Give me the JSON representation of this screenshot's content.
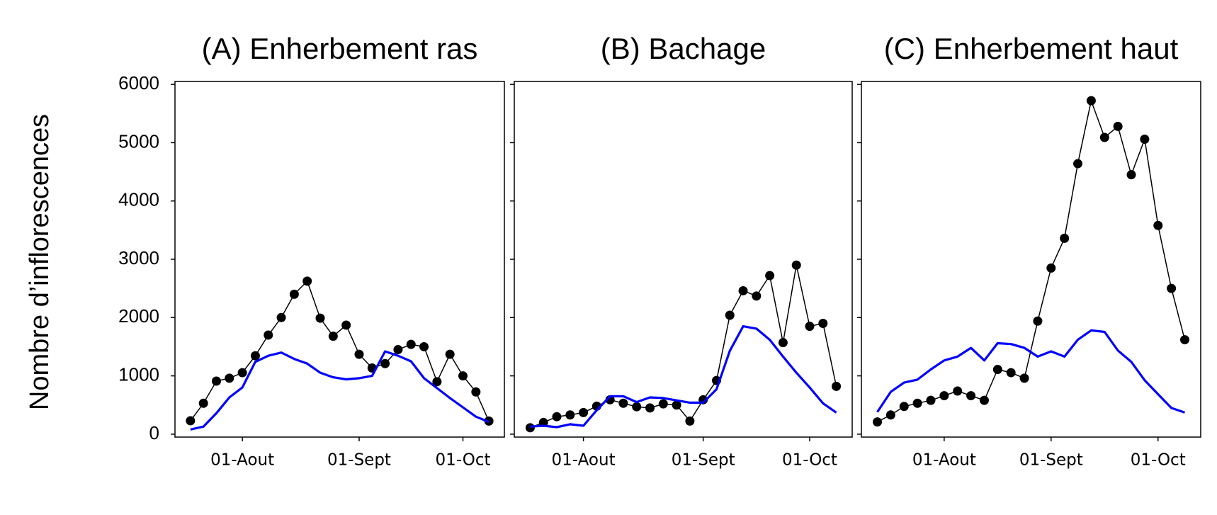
{
  "chart_data": [
    {
      "type": "line",
      "title": "(A) Enherbement ras",
      "ylabel": "Nombre d’inflorescences",
      "categories": [
        null,
        null,
        null,
        null,
        "01-Aout",
        null,
        null,
        null,
        null,
        null,
        null,
        null,
        null,
        "01-Sept",
        null,
        null,
        null,
        null,
        null,
        null,
        null,
        "01-Oct",
        null,
        null
      ],
      "series": [
        {
          "color": "#000000",
          "marker": "o",
          "values": [
            230,
            530,
            910,
            960,
            1055,
            1345,
            1700,
            2000,
            2400,
            2625,
            1990,
            1680,
            1870,
            1370,
            1135,
            1210,
            1450,
            1540,
            1500,
            900,
            1370,
            1000,
            725,
            225
          ]
        },
        {
          "color": "#0000ff",
          "marker": "none",
          "values": [
            80,
            130,
            360,
            630,
            800,
            1240,
            1345,
            1400,
            1290,
            1210,
            1055,
            975,
            940,
            960,
            1000,
            1420,
            1345,
            1250,
            960,
            790,
            620,
            460,
            300,
            210
          ]
        }
      ],
      "ylim": [
        -50,
        6050
      ],
      "yticks": [
        0,
        1000,
        2000,
        3000,
        4000,
        5000,
        6000
      ],
      "show_ytick_labels": true
    },
    {
      "type": "line",
      "title": "(B) Bachage",
      "categories": [
        null,
        null,
        null,
        null,
        "01-Aout",
        null,
        null,
        null,
        null,
        null,
        null,
        null,
        null,
        "01-Sept",
        null,
        null,
        null,
        null,
        null,
        null,
        null,
        "01-Oct",
        null,
        null
      ],
      "series": [
        {
          "color": "#000000",
          "marker": "o",
          "values": [
            110,
            200,
            300,
            330,
            370,
            480,
            590,
            530,
            470,
            450,
            520,
            500,
            225,
            590,
            920,
            2040,
            2460,
            2370,
            2720,
            1570,
            2900,
            1850,
            1900,
            820
          ]
        },
        {
          "color": "#0000ff",
          "marker": "none",
          "values": [
            130,
            145,
            120,
            170,
            145,
            410,
            650,
            650,
            550,
            630,
            620,
            580,
            540,
            540,
            770,
            1430,
            1850,
            1810,
            1620,
            1330,
            1055,
            800,
            530,
            370
          ]
        }
      ],
      "ylim": [
        -50,
        6050
      ],
      "yticks": [
        0,
        1000,
        2000,
        3000,
        4000,
        5000,
        6000
      ],
      "show_ytick_labels": false
    },
    {
      "type": "line",
      "title": "(C) Enherbement haut",
      "categories": [
        null,
        null,
        null,
        null,
        null,
        "01-Aout",
        null,
        null,
        null,
        null,
        null,
        null,
        null,
        "01-Sept",
        null,
        null,
        null,
        null,
        null,
        null,
        null,
        "01-Oct",
        null,
        null
      ],
      "series": [
        {
          "color": "#000000",
          "marker": "o",
          "values": [
            210,
            330,
            475,
            530,
            580,
            660,
            740,
            660,
            580,
            1110,
            1055,
            960,
            1940,
            2850,
            3360,
            4640,
            5720,
            5090,
            5280,
            4450,
            5060,
            3580,
            2500,
            1620
          ]
        },
        {
          "color": "#0000ff",
          "marker": "none",
          "values": [
            380,
            725,
            885,
            935,
            1110,
            1265,
            1330,
            1480,
            1265,
            1560,
            1545,
            1480,
            1330,
            1420,
            1330,
            1620,
            1780,
            1755,
            1435,
            1240,
            925,
            685,
            450,
            370
          ]
        }
      ],
      "ylim": [
        -50,
        6050
      ],
      "yticks": [
        0,
        1000,
        2000,
        3000,
        4000,
        5000,
        6000
      ],
      "show_ytick_labels": false
    }
  ]
}
